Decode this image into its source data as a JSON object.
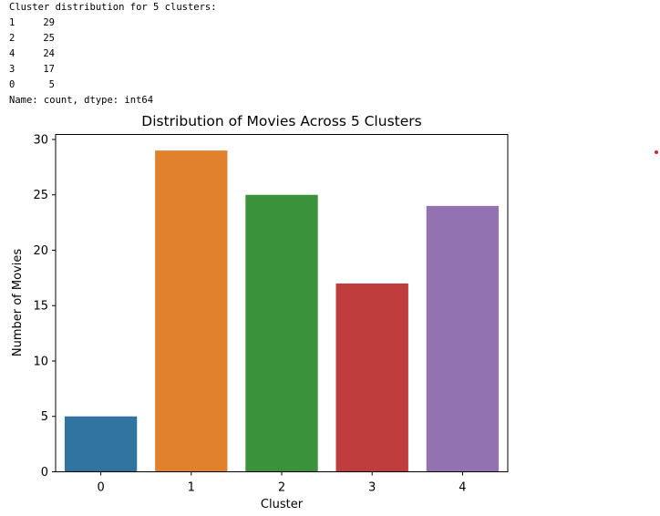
{
  "console": {
    "header": "Cluster distribution for 5 clusters:",
    "rows": [
      {
        "key": "1",
        "value": "29"
      },
      {
        "key": "2",
        "value": "25"
      },
      {
        "key": "4",
        "value": "24"
      },
      {
        "key": "3",
        "value": "17"
      },
      {
        "key": "0",
        "value": "5"
      }
    ],
    "footer": "Name: count, dtype: int64"
  },
  "chart_data": {
    "type": "bar",
    "title": "Distribution of Movies Across 5 Clusters",
    "xlabel": "Cluster",
    "ylabel": "Number of Movies",
    "categories": [
      "0",
      "1",
      "2",
      "3",
      "4"
    ],
    "values": [
      5,
      29,
      25,
      17,
      24
    ],
    "colors": [
      "#3274a1",
      "#e1812c",
      "#3a923a",
      "#c03d3e",
      "#9372b2"
    ],
    "ylim": [
      0,
      30.45
    ],
    "yticks": [
      0,
      5,
      10,
      15,
      20,
      25,
      30
    ],
    "grid": false,
    "legend": "none"
  },
  "marker": {
    "color": "#d62728"
  }
}
